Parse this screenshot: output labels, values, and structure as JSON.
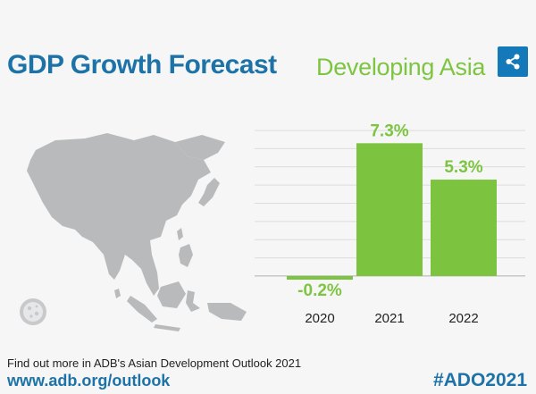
{
  "header": {
    "title": "GDP Growth Forecast",
    "subtitle": "Developing Asia",
    "share_icon": "share-icon"
  },
  "footer": {
    "note": "Find out more in ADB's Asian Development Outlook 2021",
    "link": "www.adb.org/outlook",
    "hashtag": "#ADO2021"
  },
  "colors": {
    "title": "#1d73a8",
    "accent_green": "#7dc540",
    "bar_green": "#7cc43f",
    "share_bg": "#1479b8",
    "map_gray": "#b9babc",
    "grid": "#dcdcdc",
    "axis": "#b0b0b0",
    "card_bg": "#f6f6f7"
  },
  "chart_data": {
    "type": "bar",
    "categories": [
      "2020",
      "2021",
      "2022"
    ],
    "values": [
      -0.2,
      7.3,
      5.3
    ],
    "value_labels": [
      "-0.2%",
      "7.3%",
      "5.3%"
    ],
    "ylim": [
      -0.2,
      8.2
    ],
    "grid": true
  }
}
